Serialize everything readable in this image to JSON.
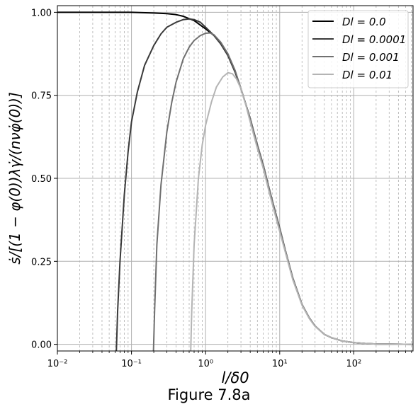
{
  "chart_data": {
    "type": "line",
    "xscale": "log",
    "xlim": [
      0.01,
      630
    ],
    "ylim": [
      -0.02,
      1.02
    ],
    "xlabel": "l/δ0",
    "ylabel": "ṡ/[(1 − φ(0))λγ̇/(nνφ̇(0))]",
    "x_ticks": [
      "10⁻²",
      "10⁻¹",
      "10⁰",
      "10¹",
      "10²"
    ],
    "y_ticks": [
      "0.00",
      "0.25",
      "0.50",
      "0.75",
      "1.00"
    ],
    "grid": true,
    "legend_position": "top-right",
    "series": [
      {
        "name": "D_l = 0.0",
        "legend_label": "Dl = 0.0",
        "color": "#000000",
        "points": [
          [
            0.01,
            1.0
          ],
          [
            0.05,
            1.0
          ],
          [
            0.1,
            1.0
          ],
          [
            0.2,
            0.998
          ],
          [
            0.3,
            0.996
          ],
          [
            0.4,
            0.993
          ],
          [
            0.5,
            0.988
          ],
          [
            0.7,
            0.975
          ],
          [
            1.0,
            0.95
          ],
          [
            1.3,
            0.93
          ],
          [
            1.6,
            0.905
          ],
          [
            2.0,
            0.87
          ],
          [
            2.5,
            0.82
          ],
          [
            3.0,
            0.77
          ],
          [
            4.0,
            0.68
          ],
          [
            5.0,
            0.6
          ],
          [
            6.0,
            0.54
          ],
          [
            7.0,
            0.48
          ],
          [
            8.0,
            0.43
          ],
          [
            10.0,
            0.35
          ],
          [
            12.0,
            0.28
          ],
          [
            15.0,
            0.2
          ],
          [
            20.0,
            0.12
          ],
          [
            25.0,
            0.08
          ],
          [
            30.0,
            0.055
          ],
          [
            40.0,
            0.03
          ],
          [
            50.0,
            0.02
          ],
          [
            70.0,
            0.01
          ],
          [
            100.0,
            0.005
          ],
          [
            150.0,
            0.002
          ],
          [
            200.0,
            0.001
          ],
          [
            630.0,
            0.0
          ]
        ]
      },
      {
        "name": "D_l = 0.0001",
        "legend_label": "Dl = 0.0001",
        "color": "#3a3a3a",
        "points": [
          [
            0.0625,
            -0.02
          ],
          [
            0.065,
            0.1
          ],
          [
            0.07,
            0.25
          ],
          [
            0.08,
            0.45
          ],
          [
            0.09,
            0.58
          ],
          [
            0.1,
            0.67
          ],
          [
            0.12,
            0.76
          ],
          [
            0.15,
            0.84
          ],
          [
            0.2,
            0.9
          ],
          [
            0.25,
            0.935
          ],
          [
            0.3,
            0.955
          ],
          [
            0.4,
            0.97
          ],
          [
            0.5,
            0.978
          ],
          [
            0.6,
            0.98
          ],
          [
            0.7,
            0.978
          ],
          [
            0.85,
            0.97
          ],
          [
            1.0,
            0.955
          ],
          [
            1.3,
            0.93
          ],
          [
            1.6,
            0.905
          ],
          [
            2.0,
            0.87
          ],
          [
            2.5,
            0.82
          ],
          [
            3.0,
            0.77
          ],
          [
            4.0,
            0.68
          ],
          [
            5.0,
            0.6
          ],
          [
            6.0,
            0.54
          ],
          [
            7.0,
            0.48
          ],
          [
            8.0,
            0.43
          ],
          [
            10.0,
            0.35
          ],
          [
            12.0,
            0.28
          ],
          [
            15.0,
            0.2
          ],
          [
            20.0,
            0.12
          ],
          [
            25.0,
            0.08
          ],
          [
            30.0,
            0.055
          ],
          [
            40.0,
            0.03
          ],
          [
            50.0,
            0.02
          ],
          [
            70.0,
            0.01
          ],
          [
            100.0,
            0.005
          ],
          [
            150.0,
            0.002
          ],
          [
            200.0,
            0.001
          ],
          [
            630.0,
            0.0
          ]
        ]
      },
      {
        "name": "D_l = 0.001",
        "legend_label": "Dl = 0.001",
        "color": "#707070",
        "points": [
          [
            0.198,
            -0.02
          ],
          [
            0.205,
            0.1
          ],
          [
            0.22,
            0.3
          ],
          [
            0.25,
            0.48
          ],
          [
            0.3,
            0.64
          ],
          [
            0.35,
            0.73
          ],
          [
            0.4,
            0.79
          ],
          [
            0.5,
            0.86
          ],
          [
            0.6,
            0.895
          ],
          [
            0.7,
            0.915
          ],
          [
            0.85,
            0.93
          ],
          [
            1.0,
            0.937
          ],
          [
            1.15,
            0.938
          ],
          [
            1.3,
            0.932
          ],
          [
            1.6,
            0.91
          ],
          [
            2.0,
            0.875
          ],
          [
            2.5,
            0.825
          ],
          [
            3.0,
            0.77
          ],
          [
            4.0,
            0.68
          ],
          [
            5.0,
            0.6
          ],
          [
            6.0,
            0.54
          ],
          [
            7.0,
            0.48
          ],
          [
            8.0,
            0.43
          ],
          [
            10.0,
            0.35
          ],
          [
            12.0,
            0.28
          ],
          [
            15.0,
            0.2
          ],
          [
            20.0,
            0.12
          ],
          [
            25.0,
            0.08
          ],
          [
            30.0,
            0.055
          ],
          [
            40.0,
            0.03
          ],
          [
            50.0,
            0.02
          ],
          [
            70.0,
            0.01
          ],
          [
            100.0,
            0.005
          ],
          [
            150.0,
            0.002
          ],
          [
            200.0,
            0.001
          ],
          [
            630.0,
            0.0
          ]
        ]
      },
      {
        "name": "D_l = 0.01",
        "legend_label": "Dl = 0.01",
        "color": "#b4b4b4",
        "points": [
          [
            0.63,
            -0.02
          ],
          [
            0.65,
            0.1
          ],
          [
            0.7,
            0.3
          ],
          [
            0.8,
            0.5
          ],
          [
            0.9,
            0.6
          ],
          [
            1.0,
            0.66
          ],
          [
            1.2,
            0.73
          ],
          [
            1.4,
            0.775
          ],
          [
            1.7,
            0.805
          ],
          [
            2.0,
            0.818
          ],
          [
            2.3,
            0.815
          ],
          [
            2.6,
            0.8
          ],
          [
            3.0,
            0.77
          ],
          [
            3.5,
            0.72
          ],
          [
            4.0,
            0.67
          ],
          [
            5.0,
            0.59
          ],
          [
            6.0,
            0.53
          ],
          [
            7.0,
            0.47
          ],
          [
            8.0,
            0.42
          ],
          [
            10.0,
            0.34
          ],
          [
            12.0,
            0.275
          ],
          [
            15.0,
            0.195
          ],
          [
            20.0,
            0.118
          ],
          [
            25.0,
            0.078
          ],
          [
            30.0,
            0.054
          ],
          [
            40.0,
            0.03
          ],
          [
            50.0,
            0.02
          ],
          [
            70.0,
            0.01
          ],
          [
            100.0,
            0.005
          ],
          [
            150.0,
            0.002
          ],
          [
            200.0,
            0.001
          ],
          [
            630.0,
            0.0
          ]
        ]
      }
    ]
  },
  "caption": "Figure 7.8a"
}
